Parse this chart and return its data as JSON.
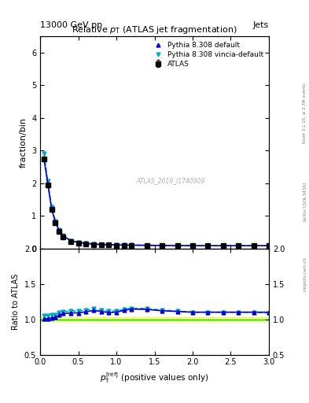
{
  "title_top": "13000 GeV pp",
  "title_right": "Jets",
  "plot_title": "Relative $p_{\\rm T}$ (ATLAS jet fragmentation)",
  "xlabel": "$p_{\\rm T}^{\\rm [ref]}$ (positive values only)",
  "ylabel_main": "fraction/bin",
  "ylabel_ratio": "Ratio to ATLAS",
  "watermark": "ATLAS_2019_I1740909",
  "right_label": "Rivet 3.1.10, ≥ 2.7M events",
  "arxiv_label": "[arXiv:1306.3436]",
  "mcplots_label": "mcplots.cern.ch",
  "atlas_x": [
    0.05,
    0.1,
    0.15,
    0.2,
    0.25,
    0.3,
    0.4,
    0.5,
    0.6,
    0.7,
    0.8,
    0.9,
    1.0,
    1.1,
    1.2,
    1.4,
    1.6,
    1.8,
    2.0,
    2.2,
    2.4,
    2.6,
    2.8,
    3.0
  ],
  "atlas_y": [
    2.75,
    1.95,
    1.2,
    0.78,
    0.52,
    0.36,
    0.22,
    0.17,
    0.14,
    0.12,
    0.11,
    0.105,
    0.1,
    0.095,
    0.09,
    0.085,
    0.083,
    0.082,
    0.081,
    0.08,
    0.079,
    0.079,
    0.079,
    0.079
  ],
  "atlas_yerr": [
    0.05,
    0.04,
    0.03,
    0.02,
    0.015,
    0.01,
    0.008,
    0.007,
    0.006,
    0.005,
    0.005,
    0.004,
    0.004,
    0.004,
    0.004,
    0.003,
    0.003,
    0.003,
    0.003,
    0.003,
    0.003,
    0.003,
    0.003,
    0.003
  ],
  "py8def_y": [
    2.76,
    1.97,
    1.22,
    0.8,
    0.55,
    0.39,
    0.24,
    0.185,
    0.155,
    0.135,
    0.122,
    0.115,
    0.11,
    0.107,
    0.103,
    0.097,
    0.093,
    0.091,
    0.089,
    0.088,
    0.087,
    0.087,
    0.087,
    0.087
  ],
  "py8vincia_y": [
    2.9,
    2.06,
    1.27,
    0.83,
    0.57,
    0.4,
    0.245,
    0.19,
    0.158,
    0.138,
    0.124,
    0.117,
    0.112,
    0.108,
    0.104,
    0.098,
    0.094,
    0.091,
    0.089,
    0.088,
    0.087,
    0.087,
    0.087,
    0.086
  ],
  "ratio_py8def_y": [
    1.003,
    1.01,
    1.02,
    1.025,
    1.058,
    1.08,
    1.09,
    1.09,
    1.107,
    1.125,
    1.11,
    1.095,
    1.1,
    1.126,
    1.144,
    1.14,
    1.12,
    1.11,
    1.1,
    1.1,
    1.1,
    1.1,
    1.1,
    1.1
  ],
  "ratio_py8vincia_y": [
    1.055,
    1.056,
    1.058,
    1.064,
    1.096,
    1.11,
    1.114,
    1.118,
    1.129,
    1.15,
    1.127,
    1.114,
    1.12,
    1.137,
    1.156,
    1.15,
    1.13,
    1.115,
    1.099,
    1.1,
    1.1,
    1.098,
    1.1,
    1.088
  ],
  "atlas_color": "#000000",
  "py8def_color": "#0000cc",
  "py8vincia_color": "#00aacc",
  "error_band_color": "#ccff00",
  "error_band_alpha": 0.5,
  "green_line_color": "#00cc00",
  "ylim_main": [
    0,
    6.5
  ],
  "ylim_ratio": [
    0.5,
    2.0
  ],
  "xlim": [
    0,
    3.0
  ],
  "yticks_main": [
    0,
    1,
    2,
    3,
    4,
    5,
    6
  ],
  "yticks_ratio": [
    0.5,
    1.0,
    1.5,
    2.0
  ]
}
